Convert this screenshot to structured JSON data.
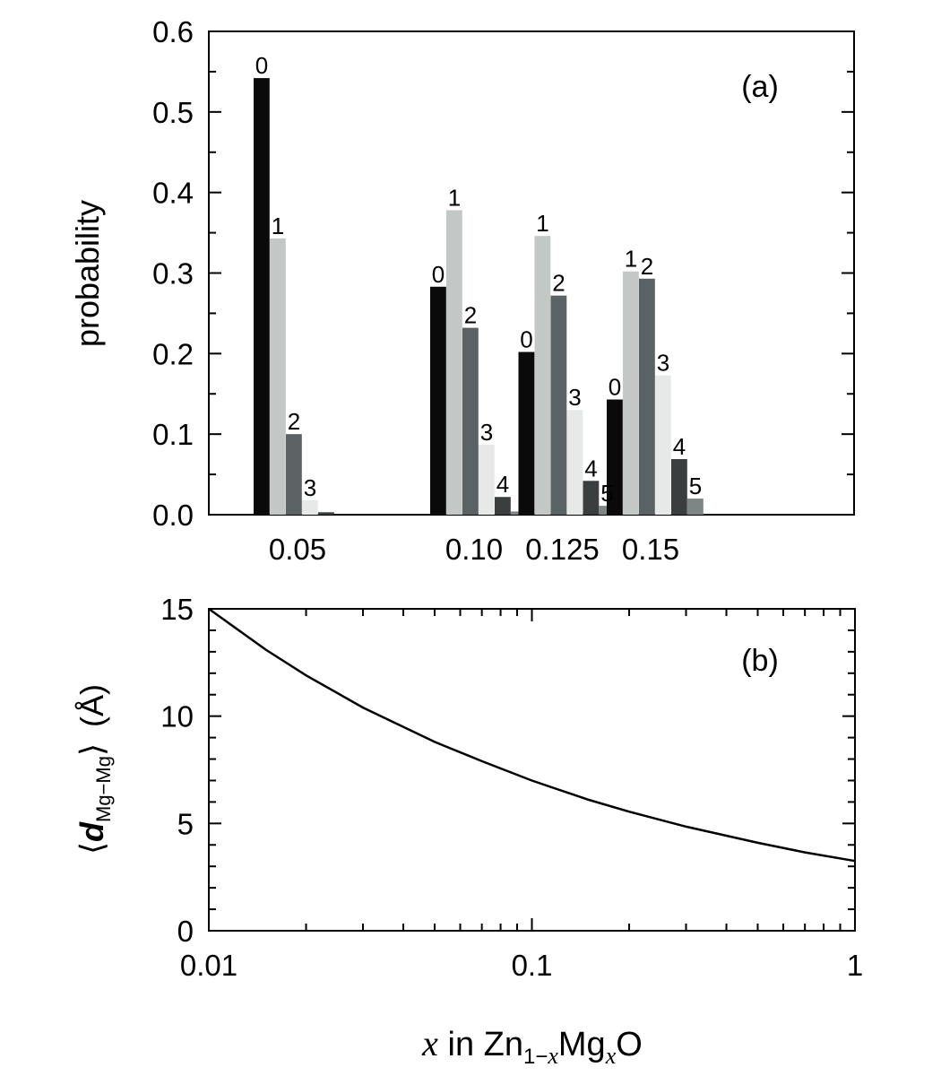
{
  "chart_data": [
    {
      "id": "a",
      "type": "bar",
      "panel_label": "(a)",
      "ylabel": "probability",
      "xlabel": "",
      "ylim": [
        0,
        0.6
      ],
      "yticks": [
        "0.0",
        "0.1",
        "0.2",
        "0.3",
        "0.4",
        "0.5",
        "0.6"
      ],
      "yticks_values": [
        0,
        0.1,
        0.2,
        0.3,
        0.4,
        0.5,
        0.6
      ],
      "categories": [
        "0.05",
        "0.10",
        "0.125",
        "0.15"
      ],
      "category_positions": [
        0.05,
        0.1,
        0.125,
        0.15
      ],
      "series": [
        {
          "name": "0",
          "color": "#0a0a0a",
          "values": [
            0.542,
            0.283,
            0.202,
            0.143
          ]
        },
        {
          "name": "1",
          "color": "#c3c7c6",
          "values": [
            0.343,
            0.378,
            0.346,
            0.302
          ]
        },
        {
          "name": "2",
          "color": "#5b6263",
          "values": [
            0.1,
            0.232,
            0.272,
            0.293
          ]
        },
        {
          "name": "3",
          "color": "#e7e9e8",
          "values": [
            0.018,
            0.087,
            0.13,
            0.173
          ]
        },
        {
          "name": "4",
          "color": "#3a3e3f",
          "values": [
            0.003,
            0.022,
            0.042,
            0.069
          ]
        },
        {
          "name": "5",
          "color": "#7d8585",
          "values": [
            0.0,
            0.004,
            0.011,
            0.02
          ]
        }
      ],
      "labels": [
        [
          "0",
          "1",
          "2",
          "3",
          "",
          ""
        ],
        [
          "0",
          "1",
          "2",
          "3",
          "4",
          ""
        ],
        [
          "0",
          "1",
          "2",
          "3",
          "4",
          "5"
        ],
        [
          "0",
          "1",
          "2",
          "3",
          "4",
          "5"
        ]
      ]
    },
    {
      "id": "b",
      "type": "line",
      "panel_label": "(b)",
      "xscale": "log",
      "xlim": [
        0.01,
        1
      ],
      "ylim": [
        0,
        15
      ],
      "xticks": [
        "0.01",
        "0.1",
        "1"
      ],
      "xticks_values": [
        0.01,
        0.1,
        1
      ],
      "yticks": [
        "0",
        "5",
        "10",
        "15"
      ],
      "yticks_values": [
        0,
        5,
        10,
        15
      ],
      "ylabel": {
        "d": "d",
        "sub": "Mg−Mg",
        "unit": "(Å)"
      },
      "xlabel": {
        "x": "x",
        "in": " in Zn",
        "sub1": "1−",
        "sub1x": "x",
        "mg": "Mg",
        "subx": "x",
        "o": "O"
      },
      "series": [
        {
          "name": "<d_Mg-Mg>",
          "color": "#000000",
          "x": [
            0.01,
            0.015,
            0.02,
            0.03,
            0.05,
            0.07,
            0.1,
            0.15,
            0.2,
            0.3,
            0.5,
            0.7,
            1.0
          ],
          "y": [
            15.0,
            13.1,
            11.9,
            10.4,
            8.8,
            7.9,
            7.0,
            6.1,
            5.55,
            4.85,
            4.1,
            3.65,
            3.25
          ]
        }
      ]
    }
  ]
}
